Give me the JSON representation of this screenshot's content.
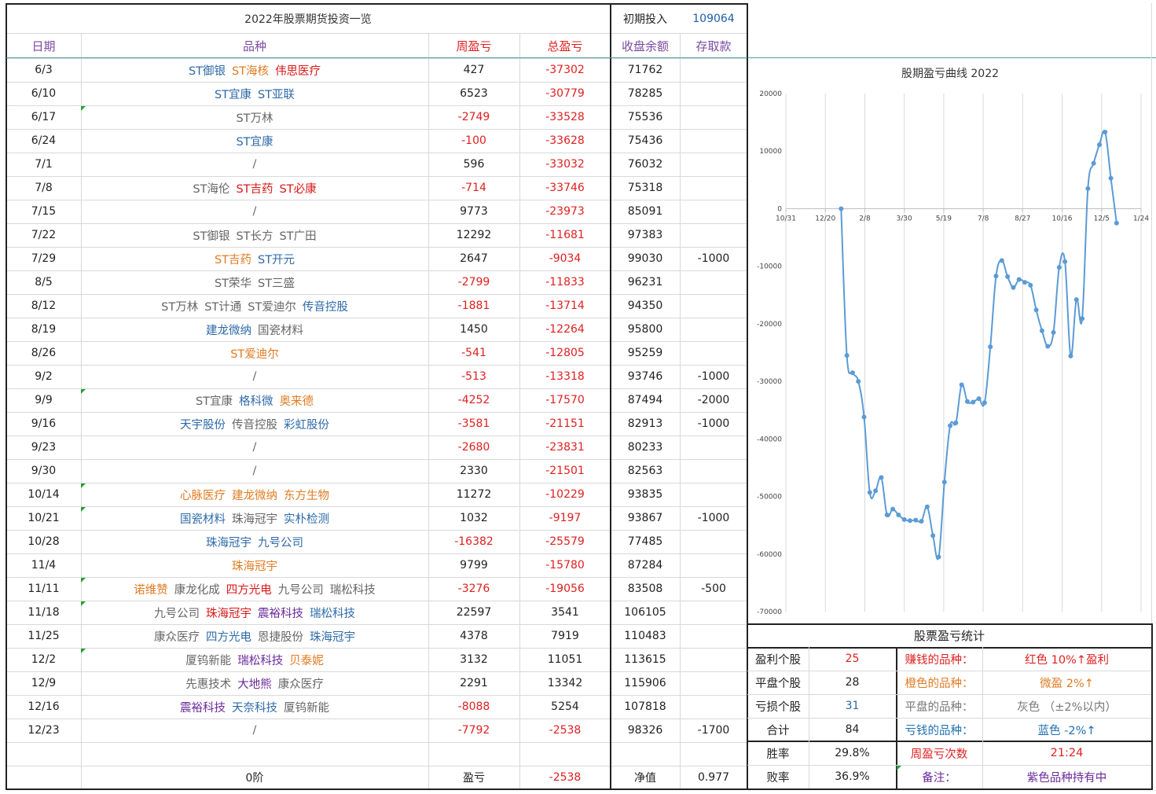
{
  "sheet": {
    "title": "2022年股票期货投资一览",
    "initial_label": "初期投入",
    "initial_value": "109064",
    "headers": {
      "date": "日期",
      "variety": "品种",
      "weekly": "周盈亏",
      "total": "总盈亏",
      "balance": "收盘余额",
      "deposit": "存取款"
    },
    "rows": [
      {
        "date": "6/3",
        "names": [
          [
            "ST御银",
            "blue"
          ],
          [
            "ST海核",
            "orange"
          ],
          [
            "伟思医疗",
            "rd"
          ]
        ],
        "weekly": "427",
        "total": "-37302",
        "balance": "71762",
        "deposit": ""
      },
      {
        "date": "6/10",
        "names": [
          [
            "ST宜康",
            "blue"
          ],
          [
            "ST亚联",
            "blue"
          ]
        ],
        "weekly": "6523",
        "total": "-30779",
        "balance": "78285",
        "deposit": ""
      },
      {
        "date": "6/17",
        "names": [
          [
            "ST万林",
            "gray"
          ]
        ],
        "weekly": "-2749",
        "total": "-33528",
        "balance": "75536",
        "deposit": ""
      },
      {
        "date": "6/24",
        "names": [
          [
            "ST宜康",
            "blue"
          ]
        ],
        "weekly": "-100",
        "total": "-33628",
        "balance": "75436",
        "deposit": ""
      },
      {
        "date": "7/1",
        "names": [
          [
            "/",
            "gray"
          ]
        ],
        "weekly": "596",
        "total": "-33032",
        "balance": "76032",
        "deposit": ""
      },
      {
        "date": "7/8",
        "names": [
          [
            "ST海伦",
            "gray"
          ],
          [
            "ST吉药",
            "rd"
          ],
          [
            "ST必康",
            "rd"
          ]
        ],
        "weekly": "-714",
        "total": "-33746",
        "balance": "75318",
        "deposit": ""
      },
      {
        "date": "7/15",
        "names": [
          [
            "/",
            "gray"
          ]
        ],
        "weekly": "9773",
        "total": "-23973",
        "balance": "85091",
        "deposit": ""
      },
      {
        "date": "7/22",
        "names": [
          [
            "ST御银",
            "gray"
          ],
          [
            "ST长方",
            "gray"
          ],
          [
            "ST广田",
            "gray"
          ]
        ],
        "weekly": "12292",
        "total": "-11681",
        "balance": "97383",
        "deposit": ""
      },
      {
        "date": "7/29",
        "names": [
          [
            "ST吉药",
            "orange"
          ],
          [
            "ST开元",
            "blue"
          ]
        ],
        "weekly": "2647",
        "total": "-9034",
        "balance": "99030",
        "deposit": "-1000"
      },
      {
        "date": "8/5",
        "names": [
          [
            "ST荣华",
            "gray"
          ],
          [
            "ST三盛",
            "gray"
          ]
        ],
        "weekly": "-2799",
        "total": "-11833",
        "balance": "96231",
        "deposit": ""
      },
      {
        "date": "8/12",
        "names": [
          [
            "ST万林",
            "gray"
          ],
          [
            "ST计通",
            "gray"
          ],
          [
            "ST爱迪尔",
            "gray"
          ],
          [
            "传音控股",
            "blue"
          ]
        ],
        "weekly": "-1881",
        "total": "-13714",
        "balance": "94350",
        "deposit": ""
      },
      {
        "date": "8/19",
        "names": [
          [
            "建龙微纳",
            "blue"
          ],
          [
            "国瓷材料",
            "gray"
          ]
        ],
        "weekly": "1450",
        "total": "-12264",
        "balance": "95800",
        "deposit": ""
      },
      {
        "date": "8/26",
        "names": [
          [
            "ST爱迪尔",
            "orange"
          ]
        ],
        "weekly": "-541",
        "total": "-12805",
        "balance": "95259",
        "deposit": ""
      },
      {
        "date": "9/2",
        "names": [
          [
            "/",
            "gray"
          ]
        ],
        "weekly": "-513",
        "total": "-13318",
        "balance": "93746",
        "deposit": "-1000"
      },
      {
        "date": "9/9",
        "names": [
          [
            "ST宜康",
            "gray"
          ],
          [
            "格科微",
            "blue"
          ],
          [
            "奥来德",
            "orange"
          ]
        ],
        "weekly": "-4252",
        "total": "-17570",
        "balance": "87494",
        "deposit": "-2000"
      },
      {
        "date": "9/16",
        "names": [
          [
            "天宇股份",
            "blue"
          ],
          [
            "传音控股",
            "gray"
          ],
          [
            "彩虹股份",
            "blue"
          ]
        ],
        "weekly": "-3581",
        "total": "-21151",
        "balance": "82913",
        "deposit": "-1000"
      },
      {
        "date": "9/23",
        "names": [
          [
            "/",
            "gray"
          ]
        ],
        "weekly": "-2680",
        "total": "-23831",
        "balance": "80233",
        "deposit": ""
      },
      {
        "date": "9/30",
        "names": [
          [
            "/",
            "gray"
          ]
        ],
        "weekly": "2330",
        "total": "-21501",
        "balance": "82563",
        "deposit": ""
      },
      {
        "date": "10/14",
        "names": [
          [
            "心脉医疗",
            "orange"
          ],
          [
            "建龙微纳",
            "orange"
          ],
          [
            "东方生物",
            "orange"
          ]
        ],
        "weekly": "11272",
        "total": "-10229",
        "balance": "93835",
        "deposit": ""
      },
      {
        "date": "10/21",
        "names": [
          [
            "国瓷材料",
            "blue"
          ],
          [
            "珠海冠宇",
            "gray"
          ],
          [
            "实朴检测",
            "blue"
          ]
        ],
        "weekly": "1032",
        "total": "-9197",
        "balance": "93867",
        "deposit": "-1000"
      },
      {
        "date": "10/28",
        "names": [
          [
            "珠海冠宇",
            "blue"
          ],
          [
            "九号公司",
            "blue"
          ]
        ],
        "weekly": "-16382",
        "total": "-25579",
        "balance": "77485",
        "deposit": ""
      },
      {
        "date": "11/4",
        "names": [
          [
            "珠海冠宇",
            "orange"
          ]
        ],
        "weekly": "9799",
        "total": "-15780",
        "balance": "87284",
        "deposit": ""
      },
      {
        "date": "11/11",
        "names": [
          [
            "诺维赞",
            "orange"
          ],
          [
            "康龙化成",
            "gray"
          ],
          [
            "四方光电",
            "rd"
          ],
          [
            "九号公司",
            "gray"
          ],
          [
            "瑞松科技",
            "gray"
          ]
        ],
        "weekly": "-3276",
        "total": "-19056",
        "balance": "83508",
        "deposit": "-500"
      },
      {
        "date": "11/18",
        "names": [
          [
            "九号公司",
            "gray"
          ],
          [
            "珠海冠宇",
            "rd"
          ],
          [
            "震裕科技",
            "purple"
          ],
          [
            "瑞松科技",
            "blue"
          ]
        ],
        "weekly": "22597",
        "total": "3541",
        "balance": "106105",
        "deposit": ""
      },
      {
        "date": "11/25",
        "names": [
          [
            "康众医疗",
            "gray"
          ],
          [
            "四方光电",
            "blue"
          ],
          [
            "恩捷股份",
            "gray"
          ],
          [
            "珠海冠宇",
            "blue"
          ]
        ],
        "weekly": "4378",
        "total": "7919",
        "balance": "110483",
        "deposit": ""
      },
      {
        "date": "12/2",
        "names": [
          [
            "厦钨新能",
            "gray"
          ],
          [
            "瑞松科技",
            "purple"
          ],
          [
            "贝泰妮",
            "orange"
          ]
        ],
        "weekly": "3132",
        "total": "11051",
        "balance": "113615",
        "deposit": ""
      },
      {
        "date": "12/9",
        "names": [
          [
            "先惠技术",
            "gray"
          ],
          [
            "大地熊",
            "purple"
          ],
          [
            "康众医疗",
            "gray"
          ]
        ],
        "weekly": "2291",
        "total": "13342",
        "balance": "115906",
        "deposit": ""
      },
      {
        "date": "12/16",
        "names": [
          [
            "震裕科技",
            "purple"
          ],
          [
            "天奈科技",
            "blue"
          ],
          [
            "厦钨新能",
            "gray"
          ]
        ],
        "weekly": "-8088",
        "total": "5254",
        "balance": "107818",
        "deposit": ""
      },
      {
        "date": "12/23",
        "names": [
          [
            "/",
            "gray"
          ]
        ],
        "weekly": "-7792",
        "total": "-2538",
        "balance": "98326",
        "deposit": "-1700"
      }
    ],
    "footer": {
      "stage": "0阶",
      "pnl_label": "盈亏",
      "pnl_value": "-2538",
      "nav_label": "净值",
      "nav_value": "0.977"
    }
  },
  "stats": {
    "title": "股票盈亏统计",
    "rows": [
      {
        "label": "盈利个股",
        "value": "25",
        "desc_label": "赚钱的品种：",
        "desc": "红色 10%↑盈利",
        "color": "#e02020"
      },
      {
        "label": "平盘个股",
        "value": "28",
        "desc_label": "橙色的品种：",
        "desc": "微盈 2%↑",
        "color": "#e07b22"
      },
      {
        "label": "亏损个股",
        "value": "31",
        "desc_label": "平盘的品种：",
        "desc": "灰色 （±2%以内）",
        "color": "#777777"
      },
      {
        "label": "合计",
        "value": "84",
        "desc_label": "亏钱的品种：",
        "desc": "蓝色 -2%↑",
        "color": "#1f6fb0"
      },
      {
        "label": "胜率",
        "value": "29.8%",
        "desc_label": "周盈亏次数",
        "desc": "21:24",
        "color": "#e02020"
      },
      {
        "label": "败率",
        "value": "36.9%",
        "desc_label": "备注：",
        "desc": "紫色品种持有中",
        "color": "#6a2a9a"
      }
    ]
  },
  "chart_data": {
    "type": "line",
    "title": "股期盈亏曲线 2022",
    "ylim": [
      -70000,
      20000
    ],
    "yticks": [
      "20000",
      "10000",
      "0",
      "-10000",
      "-20000",
      "-30000",
      "-40000",
      "-50000",
      "-60000",
      "-70000"
    ],
    "xticks": [
      "10/31",
      "12/20",
      "2/8",
      "3/30",
      "5/19",
      "7/8",
      "8/27",
      "10/16",
      "12/5",
      "1/24"
    ],
    "series": [
      {
        "values": [
          0,
          -25500,
          -28500,
          -30000,
          -36200,
          -49300,
          -49000,
          -46700,
          -53200,
          -52200,
          -53200,
          -54000,
          -54200,
          -54100,
          -54300,
          -51800,
          -56800,
          -60500,
          -47500,
          -37700,
          -37200,
          -30600,
          -33500,
          -33600,
          -33000,
          -33700,
          -24000,
          -11700,
          -9000,
          -11800,
          -13700,
          -12300,
          -12800,
          -13300,
          -17600,
          -21200,
          -23900,
          -21500,
          -10200,
          -9200,
          -25600,
          -15800,
          -19100,
          3500,
          7900,
          11100,
          13300,
          5300,
          -2500
        ],
        "color": "#5b9bd5"
      }
    ]
  }
}
